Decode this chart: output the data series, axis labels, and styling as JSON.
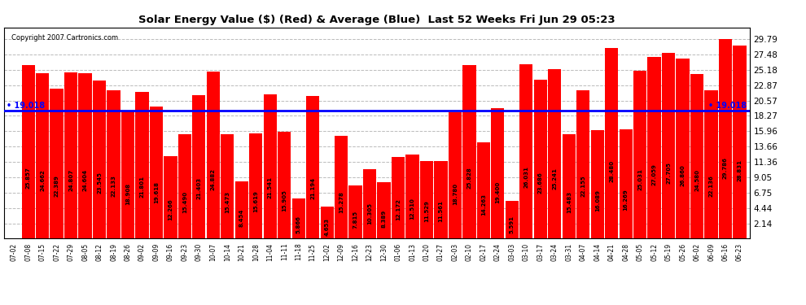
{
  "title": "Solar Energy Value ($) (Red) & Average (Blue)  Last 52 Weeks Fri Jun 29 05:23",
  "copyright": "Copyright 2007 Cartronics.com",
  "average_value": 19.018,
  "bar_color": "#ff0000",
  "average_color": "#0000ff",
  "background_color": "#ffffff",
  "grid_color": "#bbbbbb",
  "yticks": [
    2.14,
    4.44,
    6.75,
    9.05,
    11.36,
    13.66,
    15.96,
    18.27,
    20.57,
    22.87,
    25.18,
    27.48,
    29.79
  ],
  "ylim_max": 31.5,
  "categories": [
    "07-02",
    "07-08",
    "07-15",
    "07-22",
    "07-29",
    "08-05",
    "08-12",
    "08-19",
    "08-26",
    "09-02",
    "09-09",
    "09-16",
    "09-23",
    "09-30",
    "10-07",
    "10-14",
    "10-21",
    "10-28",
    "11-04",
    "11-11",
    "11-18",
    "11-25",
    "12-02",
    "12-09",
    "12-16",
    "12-23",
    "12-30",
    "01-06",
    "01-13",
    "01-20",
    "01-27",
    "02-03",
    "02-10",
    "02-17",
    "02-24",
    "03-03",
    "03-10",
    "03-17",
    "03-24",
    "03-31",
    "04-07",
    "04-14",
    "04-21",
    "04-28",
    "05-05",
    "05-12",
    "05-19",
    "05-26",
    "06-02",
    "06-09",
    "06-16",
    "06-23"
  ],
  "values": [
    0.0,
    25.857,
    24.662,
    22.389,
    24.807,
    24.604,
    23.545,
    22.133,
    18.908,
    21.801,
    19.618,
    12.266,
    15.49,
    21.403,
    24.882,
    15.473,
    8.454,
    15.619,
    21.541,
    15.905,
    5.866,
    21.194,
    4.653,
    15.278,
    7.815,
    10.305,
    8.389,
    12.172,
    12.51,
    11.529,
    11.561,
    18.78,
    25.828,
    14.263,
    19.4,
    5.591,
    26.031,
    23.686,
    25.241,
    15.483,
    22.155,
    16.089,
    28.48,
    16.269,
    25.031,
    27.059,
    27.705,
    26.86,
    24.58,
    22.136,
    29.786,
    28.831
  ]
}
